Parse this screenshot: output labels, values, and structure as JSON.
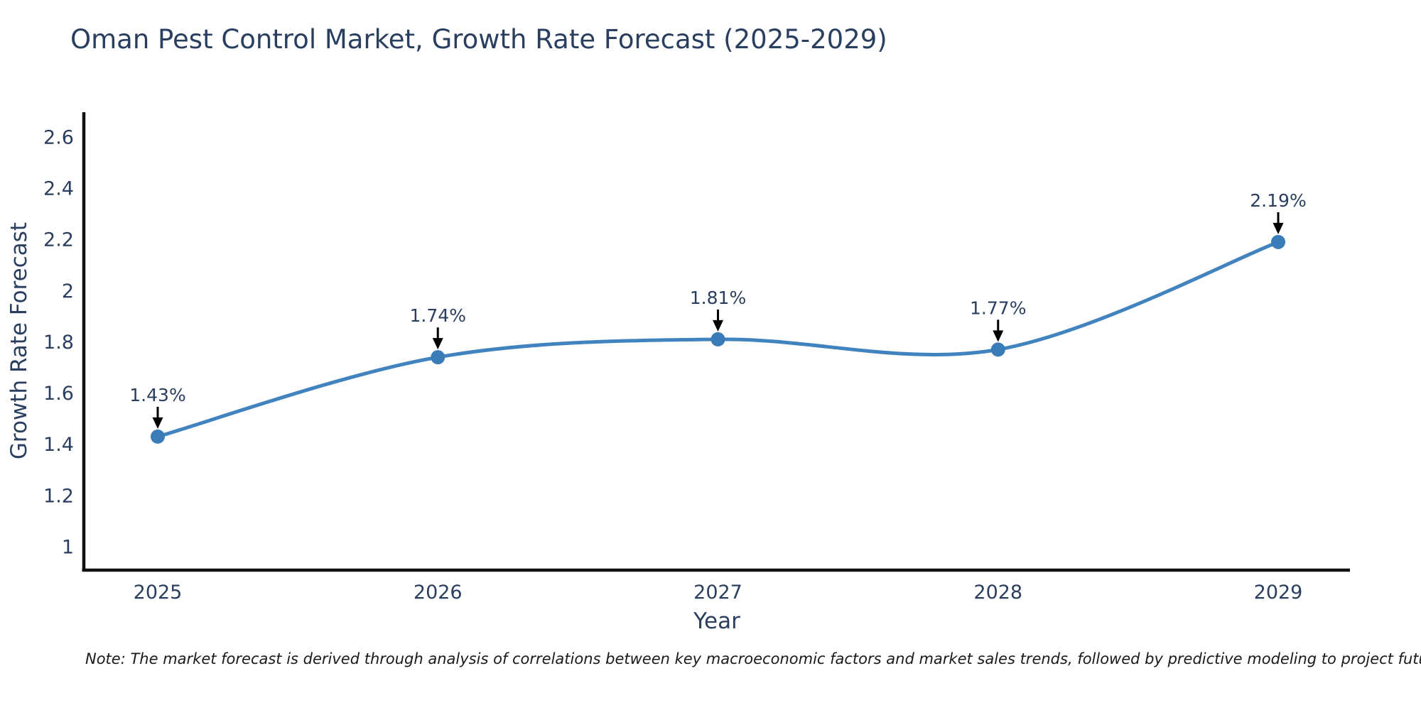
{
  "page_title": "Oman Pest Control Market, Growth Rate Forecast (2025-2029)",
  "note": "Note: The market forecast is derived through analysis of correlations between key macroeconomic factors and market sales trends, followed by predictive modeling to project future sales",
  "chart_data": {
    "type": "line",
    "line_shape": "spline",
    "title": "Oman Pest Control Market, Growth Rate Forecast (2025-2029)",
    "xlabel": "Year",
    "ylabel": "Growth Rate Forecast",
    "x": [
      2025,
      2026,
      2027,
      2028,
      2029
    ],
    "categories": [
      "2025",
      "2026",
      "2027",
      "2028",
      "2029"
    ],
    "values": [
      1.43,
      1.74,
      1.81,
      1.77,
      2.19
    ],
    "point_labels": [
      "1.43%",
      "1.74%",
      "1.81%",
      "1.77%",
      "2.19%"
    ],
    "yticks": [
      1,
      1.2,
      1.4,
      1.6,
      1.8,
      2,
      2.2,
      2.4,
      2.6
    ],
    "ytick_labels": [
      "1",
      "1.2",
      "1.4",
      "1.6",
      "1.8",
      "2",
      "2.2",
      "2.4",
      "2.6"
    ],
    "ylim": [
      0.9,
      2.7
    ],
    "xlim": [
      2024.74,
      2029.26
    ],
    "grid": false,
    "legend": "none",
    "markers": true,
    "annotations_have_arrows": true,
    "colors": {
      "line": "#4083bf",
      "marker": "#3a7cb8",
      "axis": "#111111",
      "tick_text": "#2a3f5f",
      "annotation_text": "#2a3f5f",
      "arrow": "#000000",
      "title_text": "#2a3f5f",
      "background": "#ffffff"
    }
  }
}
